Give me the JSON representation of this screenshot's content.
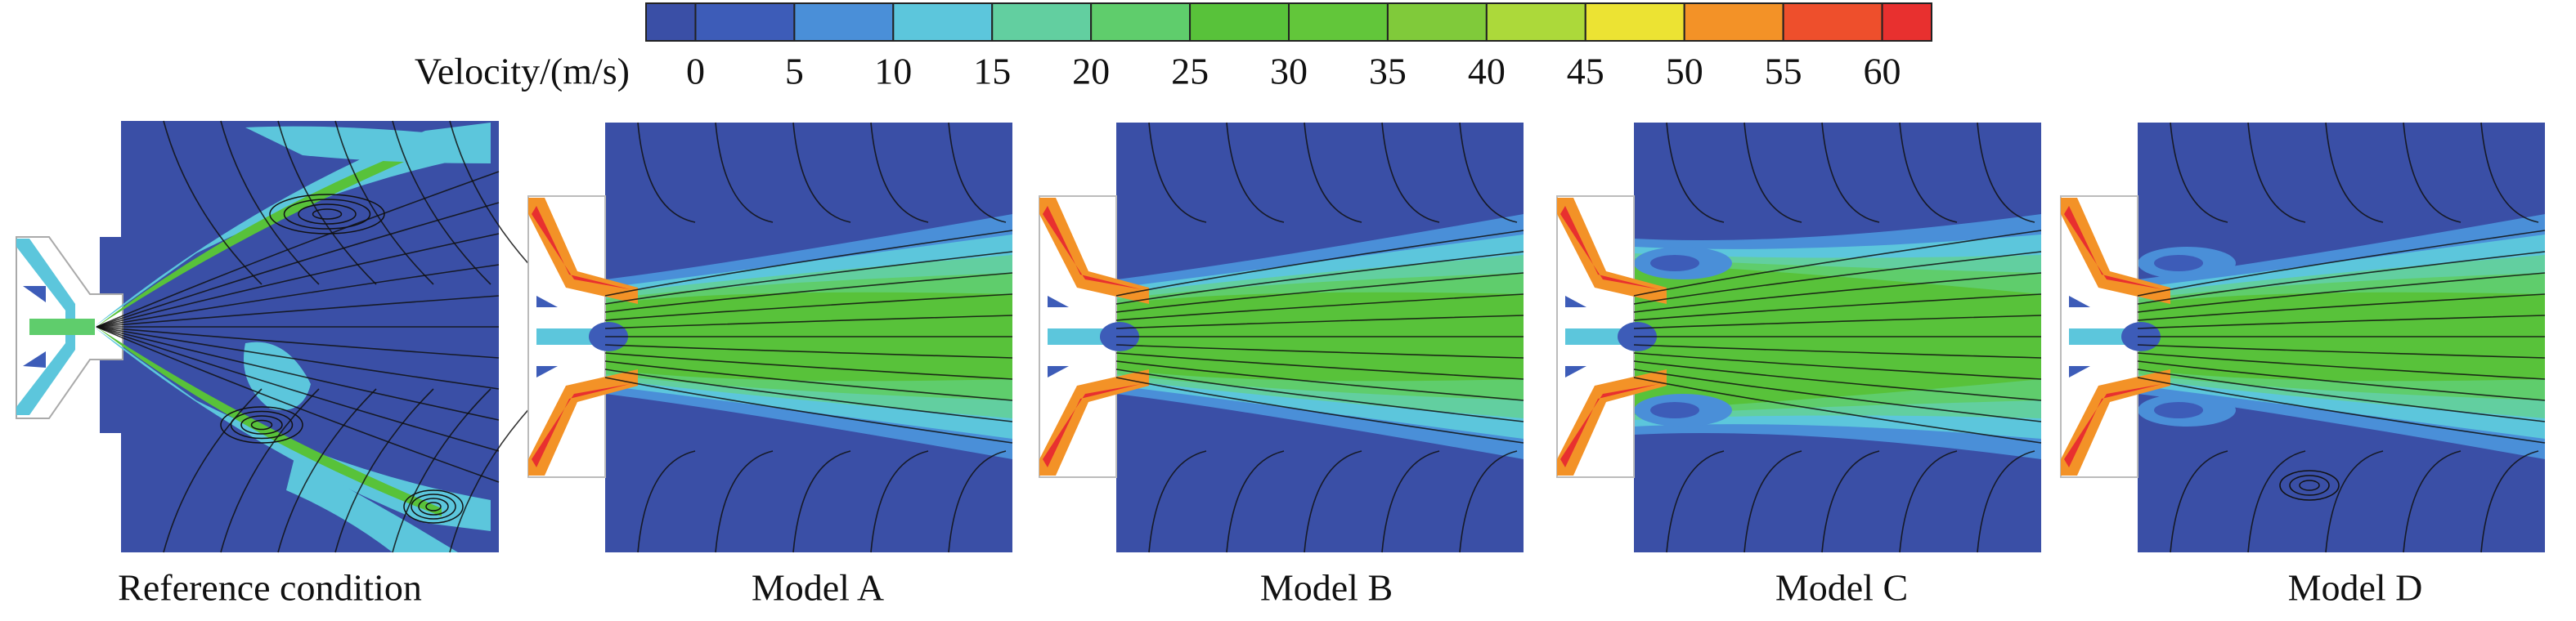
{
  "colorbar": {
    "label": "Velocity/(m/s)",
    "ticks": [
      0,
      5,
      10,
      15,
      20,
      25,
      30,
      35,
      40,
      45,
      50,
      55,
      60
    ],
    "colors": [
      "#3a4fa6",
      "#3d5cb8",
      "#4a8fd8",
      "#5cc6dc",
      "#62cfa0",
      "#5fcd6c",
      "#58c23a",
      "#62c63a",
      "#80ca3a",
      "#acd93a",
      "#ece333",
      "#f39227",
      "#ee4f2c",
      "#e8302f"
    ]
  },
  "panels": [
    {
      "label": "Reference condition"
    },
    {
      "label": "Model A"
    },
    {
      "label": "Model B"
    },
    {
      "label": "Model C"
    },
    {
      "label": "Model D"
    }
  ]
}
